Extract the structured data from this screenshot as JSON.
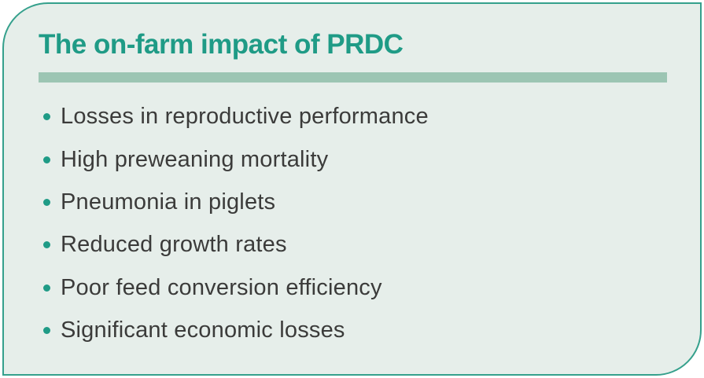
{
  "card": {
    "title": "The on-farm impact of PRDC",
    "items": [
      {
        "label": "Losses in reproductive performance"
      },
      {
        "label": "High preweaning mortality"
      },
      {
        "label": "Pneumonia in piglets"
      },
      {
        "label": "Reduced growth rates"
      },
      {
        "label": "Poor feed conversion efficiency"
      },
      {
        "label": "Significant economic losses"
      }
    ],
    "colors": {
      "accent": "#1f9b86",
      "divider": "#9cc5b3",
      "card_background": "#e6eeea",
      "text": "#3b3b3a",
      "border": "#35a08c",
      "page_background": "#ffffff"
    }
  }
}
